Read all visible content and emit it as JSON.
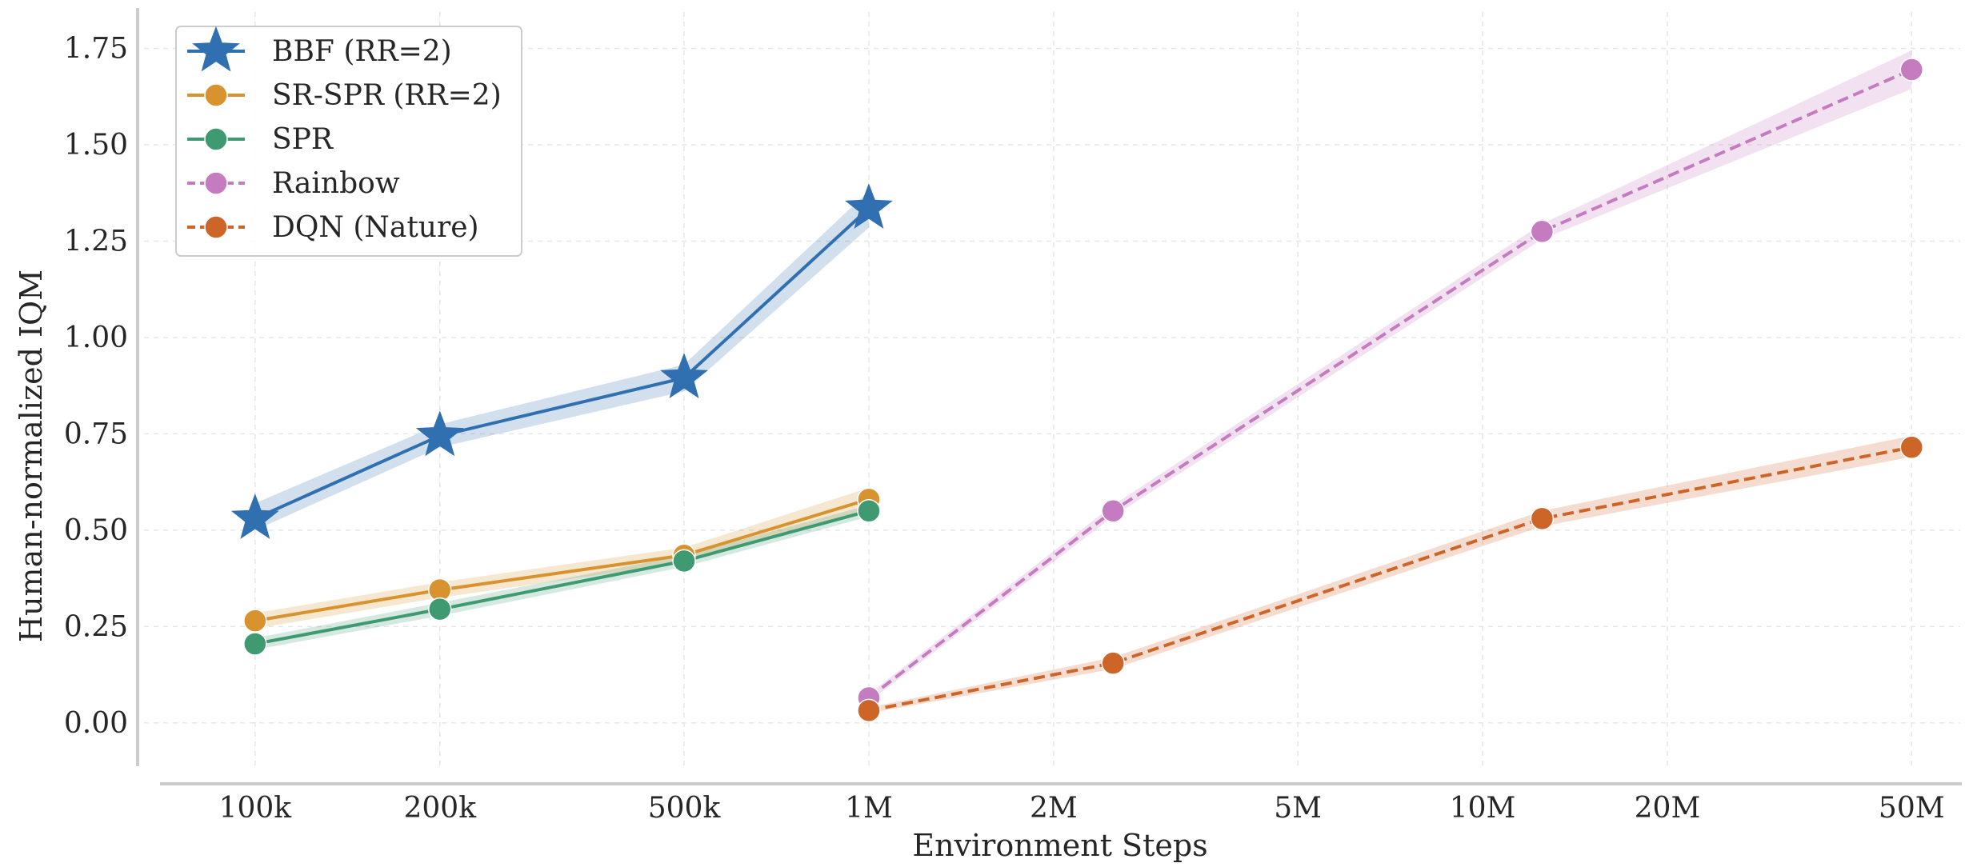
{
  "chart_data": {
    "type": "line",
    "xlabel": "Environment Steps",
    "ylabel": "Human-normalized IQM",
    "x_scale": "log",
    "x_ticks": [
      {
        "value": 100000,
        "label": "100k"
      },
      {
        "value": 200000,
        "label": "200k"
      },
      {
        "value": 500000,
        "label": "500k"
      },
      {
        "value": 1000000,
        "label": "1M"
      },
      {
        "value": 2000000,
        "label": "2M"
      },
      {
        "value": 5000000,
        "label": "5M"
      },
      {
        "value": 10000000,
        "label": "10M"
      },
      {
        "value": 20000000,
        "label": "20M"
      },
      {
        "value": 50000000,
        "label": "50M"
      }
    ],
    "y_ticks": [
      {
        "value": 0.0,
        "label": "0.00"
      },
      {
        "value": 0.25,
        "label": "0.25"
      },
      {
        "value": 0.5,
        "label": "0.50"
      },
      {
        "value": 0.75,
        "label": "0.75"
      },
      {
        "value": 1.0,
        "label": "1.00"
      },
      {
        "value": 1.25,
        "label": "1.25"
      },
      {
        "value": 1.5,
        "label": "1.50"
      },
      {
        "value": 1.75,
        "label": "1.75"
      }
    ],
    "xlim": [
      70000,
      60000000
    ],
    "ylim": [
      -0.1,
      1.83
    ],
    "grid": true,
    "legend_position": "top-left",
    "series": [
      {
        "name": "BBF (RR=2)",
        "color": "#3070b0",
        "marker": "star",
        "linestyle": "solid",
        "x": [
          100000,
          200000,
          500000,
          1000000
        ],
        "y": [
          0.53,
          0.745,
          0.895,
          1.335
        ],
        "y_low": [
          0.5,
          0.715,
          0.86,
          1.285
        ],
        "y_high": [
          0.57,
          0.775,
          0.93,
          1.38
        ]
      },
      {
        "name": "SR-SPR (RR=2)",
        "color": "#d8922e",
        "marker": "circle",
        "linestyle": "solid",
        "x": [
          100000,
          200000,
          500000,
          1000000
        ],
        "y": [
          0.265,
          0.345,
          0.435,
          0.58
        ],
        "y_low": [
          0.245,
          0.325,
          0.415,
          0.555
        ],
        "y_high": [
          0.285,
          0.365,
          0.455,
          0.61
        ]
      },
      {
        "name": "SPR",
        "color": "#3f9a72",
        "marker": "circle",
        "linestyle": "solid",
        "x": [
          100000,
          200000,
          500000,
          1000000
        ],
        "y": [
          0.205,
          0.295,
          0.42,
          0.55
        ],
        "y_low": [
          0.19,
          0.278,
          0.405,
          0.535
        ],
        "y_high": [
          0.22,
          0.312,
          0.435,
          0.565
        ]
      },
      {
        "name": "Rainbow",
        "color": "#c57bbf",
        "marker": "circle",
        "linestyle": "dashed",
        "x": [
          1000000,
          2500000,
          12500000,
          50000000
        ],
        "y": [
          0.065,
          0.55,
          1.275,
          1.695
        ],
        "y_low": [
          0.055,
          0.535,
          1.255,
          1.645
        ],
        "y_high": [
          0.075,
          0.565,
          1.295,
          1.745
        ]
      },
      {
        "name": "DQN (Nature)",
        "color": "#cd6428",
        "marker": "circle",
        "linestyle": "dashed",
        "x": [
          1000000,
          2500000,
          12500000,
          50000000
        ],
        "y": [
          0.032,
          0.155,
          0.53,
          0.715
        ],
        "y_low": [
          0.025,
          0.14,
          0.51,
          0.69
        ],
        "y_high": [
          0.04,
          0.17,
          0.55,
          0.745
        ]
      }
    ]
  }
}
